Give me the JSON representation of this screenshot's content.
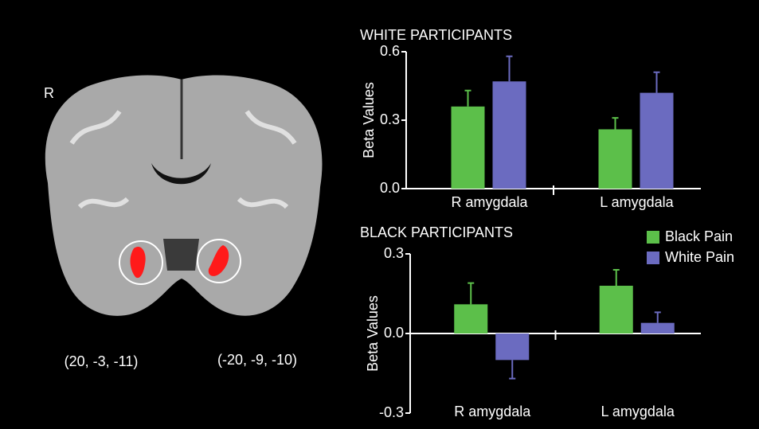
{
  "image": {
    "side_label": "R",
    "coordinates": [
      "(20, -3, -11)",
      "(-20, -9, -10)"
    ]
  },
  "chart_data": [
    {
      "type": "bar",
      "title": "WHITE PARTICIPANTS",
      "y_label": "Beta Values",
      "categories": [
        "R amygdala",
        "L amygdala"
      ],
      "series": [
        {
          "color": "#5cbf4a",
          "values": [
            0.36,
            0.26
          ],
          "errors": [
            0.07,
            0.05
          ]
        },
        {
          "color": "#6b6bc0",
          "values": [
            0.47,
            0.42
          ],
          "errors": [
            0.11,
            0.09
          ]
        }
      ],
      "ylim": [
        0,
        0.6
      ],
      "yticks": [
        {
          "value": 0,
          "label": "0.0"
        },
        0.3,
        0.6
      ]
    },
    {
      "type": "bar",
      "title": "BLACK PARTICIPANTS",
      "y_label": "Beta Values",
      "categories": [
        "R amygdala",
        "L amygdala"
      ],
      "series": [
        {
          "name": "Black Pain",
          "color": "#5cbf4a",
          "values": [
            0.11,
            0.18
          ],
          "errors": [
            0.08,
            0.06
          ]
        },
        {
          "name": "White Pain",
          "color": "#6b6bc0",
          "values": [
            -0.1,
            0.04
          ],
          "errors": [
            0.07,
            0.04
          ]
        }
      ],
      "ylim": [
        -0.3,
        0.3
      ],
      "yticks": [
        -0.3,
        {
          "value": 0,
          "label": "0.0"
        },
        0.3
      ],
      "legend": "upper right"
    }
  ]
}
